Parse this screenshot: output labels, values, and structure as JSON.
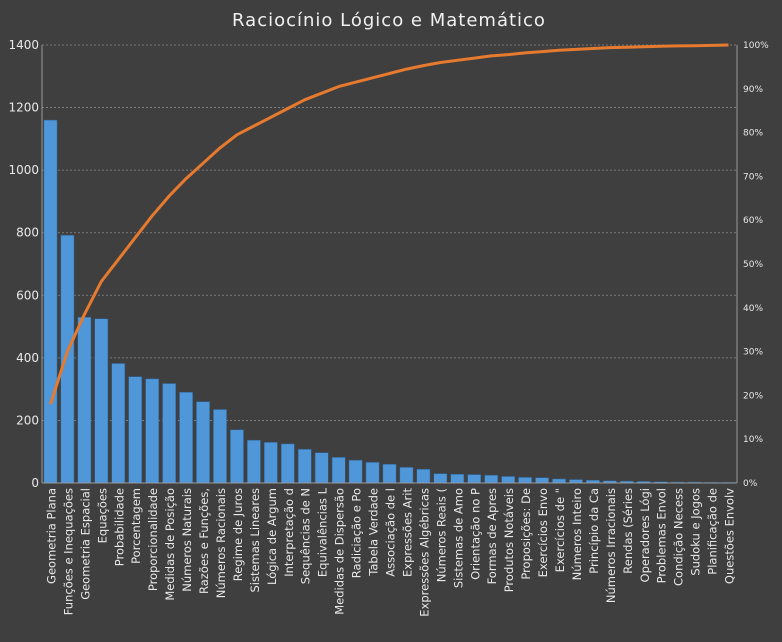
{
  "chart_data": {
    "type": "bar",
    "title": "Raciocínio Lógico e Matemático",
    "xlabel": "",
    "ylabel": "",
    "ylim": [
      0,
      1400
    ],
    "y_ticks": [
      0,
      200,
      400,
      600,
      800,
      1000,
      1200,
      1400
    ],
    "y2lim": [
      0,
      100
    ],
    "y2_ticks": [
      "0%",
      "10%",
      "20%",
      "30%",
      "40%",
      "50%",
      "60%",
      "70%",
      "80%",
      "90%",
      "100%"
    ],
    "grid": true,
    "legend": "none",
    "categories": [
      "Geometria Plana",
      "Funções e Inequações",
      "Geometria Espacial",
      "Equações",
      "Probabilidade",
      "Porcentagem",
      "Proporcionalidade",
      "Medidas de Posição",
      "Números Naturais",
      "Razões e Funções,",
      "Números Racionais",
      "Regime de Juros",
      "Sistemas Lineares",
      "Lógica de Argum",
      "Interpretação d",
      "Sequências de N",
      "Equivalências L",
      "Medidas de Dispersão",
      "Radiciação e Po",
      "Tabela Verdade",
      "Associação de l",
      "Expressões Arit",
      "Expressões Algébricas",
      "Números Reais (",
      "Sistemas de Amo",
      "Orientação no P",
      "Formas de Apres",
      "Produtos Notáveis",
      "Proposições: De",
      "Exercícios Envo",
      "Exercícios de \"",
      "Números Inteiro",
      "Princípio da Ca",
      "Números Irracionais",
      "Rendas (Séries",
      "Operadores Lógi",
      "Problemas Envol",
      "Condição Necess",
      "Sudoku e Jogos",
      "Planificação de",
      "Questões Envolv"
    ],
    "series": [
      {
        "type": "bar",
        "color": "#4f97d8",
        "values": [
          1160,
          792,
          530,
          525,
          382,
          340,
          333,
          318,
          290,
          260,
          235,
          170,
          137,
          130,
          125,
          108,
          97,
          82,
          73,
          66,
          60,
          50,
          44,
          30,
          28,
          27,
          25,
          21,
          18,
          17,
          13,
          11,
          9,
          7,
          6,
          5,
          4,
          3,
          3,
          2,
          2
        ]
      },
      {
        "type": "line",
        "axis": "right",
        "color": "#e67a2e",
        "values": [
          18,
          30,
          38.5,
          46,
          51,
          56,
          61,
          65.5,
          69.5,
          73,
          76.5,
          79.5,
          81.5,
          83.5,
          85.5,
          87.5,
          89,
          90.5,
          91.5,
          92.5,
          93.5,
          94.5,
          95.3,
          96,
          96.5,
          97,
          97.5,
          97.8,
          98.2,
          98.5,
          98.8,
          99,
          99.2,
          99.4,
          99.5,
          99.6,
          99.7,
          99.8,
          99.85,
          99.9,
          100
        ]
      }
    ]
  }
}
